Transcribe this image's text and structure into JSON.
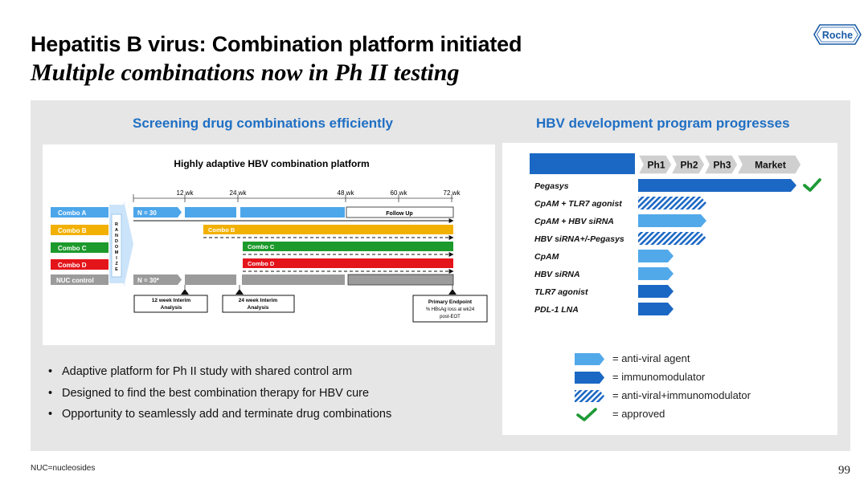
{
  "header": {
    "title": "Hepatitis B virus: Combination platform initiated",
    "subtitle": "Multiple combinations now in Ph II testing",
    "logo_text": "Roche"
  },
  "left": {
    "heading": "Screening drug combinations efficiently",
    "diagram": {
      "title": "Highly adaptive HBV combination platform",
      "weeks": [
        "12 wk",
        "24 wk",
        "48 wk",
        "60 wk",
        "72 wk"
      ],
      "arms": [
        {
          "label": "Combo A",
          "color": "#4da6ea"
        },
        {
          "label": "Combo B",
          "color": "#f2b000"
        },
        {
          "label": "Combo C",
          "color": "#1c9a2c"
        },
        {
          "label": "Combo D",
          "color": "#e4141b"
        },
        {
          "label": "NUC control",
          "color": "#9b9b9b"
        }
      ],
      "randomize_letters": [
        "R",
        "A",
        "N",
        "D",
        "O",
        "M",
        "I",
        "Z",
        "E"
      ],
      "n_combo": "N = 30",
      "n_control": "N = 30*",
      "bar_labels": {
        "follow_up": "Follow Up",
        "combo_b": "Combo B",
        "combo_c": "Combo C",
        "combo_d": "Combo D"
      },
      "milestones": [
        {
          "line1": "12 week Interim",
          "line2": "Analysis"
        },
        {
          "line1": "24 week Interim",
          "line2": "Analysis"
        },
        {
          "line1": "Primary Endpoint",
          "line2": "% HBsAg loss at wk24",
          "line3": "post-EOT"
        }
      ]
    },
    "bullets": [
      "Adaptive platform for Ph II study with shared control arm",
      "Designed to find the best combination therapy for HBV cure",
      "Opportunity to seamlessly add and terminate drug combinations"
    ]
  },
  "right": {
    "heading": "HBV development program progresses",
    "chart_data": {
      "type": "bar",
      "title": "",
      "phases": [
        "Ph1",
        "Ph2",
        "Ph3",
        "Market"
      ],
      "categories": [
        "Pegasys",
        "CpAM + TLR7 agonist",
        "CpAM + HBV siRNA",
        "HBV siRNA+/-Pegasys",
        "CpAM",
        "HBV siRNA",
        "TLR7 agonist",
        "PDL-1 LNA"
      ],
      "values": [
        4,
        2,
        2,
        2,
        1,
        1,
        1,
        1
      ],
      "types": [
        "immunomodulator",
        "anti-viral+immunomodulator",
        "anti-viral agent",
        "anti-viral+immunomodulator",
        "anti-viral agent",
        "anti-viral agent",
        "immunomodulator",
        "immunomodulator"
      ],
      "approved": [
        true,
        false,
        false,
        false,
        false,
        false,
        false,
        false
      ]
    },
    "legend": [
      {
        "symbol": "light-arrow",
        "label": "= anti-viral agent"
      },
      {
        "symbol": "dark-arrow",
        "label": "= immunomodulator"
      },
      {
        "symbol": "hatched-arrow",
        "label": "= anti-viral+immunomodulator"
      },
      {
        "symbol": "check-icon",
        "label": "= approved"
      }
    ],
    "colors": {
      "light": "#52a9e9",
      "dark": "#1b68c4",
      "check": "#1e9a36",
      "phase": "#cfcfcf",
      "header_bar": "#1b68c4"
    }
  },
  "footer": {
    "footnote": "NUC=nucleosides",
    "page_number": "99"
  }
}
